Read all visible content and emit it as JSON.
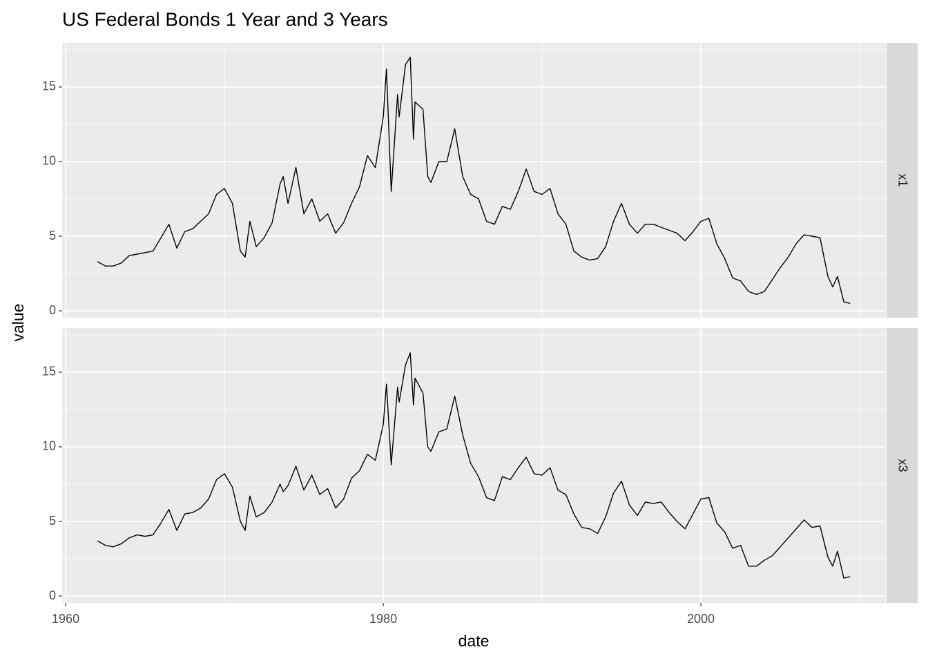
{
  "title": "US Federal Bonds 1 Year and 3 Years",
  "x_label": "date",
  "y_label": "value",
  "chart_data": [
    {
      "type": "line",
      "strip": "x1",
      "color": "#000000",
      "x": [
        1962,
        1962.5,
        1963,
        1963.5,
        1964,
        1964.5,
        1965,
        1965.5,
        1966,
        1966.5,
        1967,
        1967.5,
        1968,
        1968.5,
        1969,
        1969.5,
        1970,
        1970.5,
        1971,
        1971.3,
        1971.6,
        1972,
        1972.5,
        1973,
        1973.5,
        1973.7,
        1974,
        1974.5,
        1975,
        1975.5,
        1976,
        1976.5,
        1977,
        1977.5,
        1978,
        1978.5,
        1979,
        1979.5,
        1980,
        1980.2,
        1980.5,
        1980.9,
        1981,
        1981.4,
        1981.7,
        1981.9,
        1982,
        1982.5,
        1982.8,
        1983,
        1983.5,
        1984,
        1984.5,
        1985,
        1985.5,
        1986,
        1986.5,
        1987,
        1987.5,
        1988,
        1988.5,
        1989,
        1989.5,
        1990,
        1990.5,
        1991,
        1991.5,
        1992,
        1992.5,
        1993,
        1993.5,
        1994,
        1994.5,
        1995,
        1995.5,
        1996,
        1996.5,
        1997,
        1997.5,
        1998,
        1998.5,
        1999,
        1999.5,
        2000,
        2000.5,
        2001,
        2001.5,
        2002,
        2002.5,
        2003,
        2003.5,
        2004,
        2004.5,
        2005,
        2005.5,
        2006,
        2006.5,
        2007,
        2007.5,
        2008,
        2008.3,
        2008.6,
        2009,
        2009.4
      ],
      "values": [
        3.3,
        3.0,
        3.0,
        3.2,
        3.7,
        3.8,
        3.9,
        4.0,
        4.9,
        5.8,
        4.2,
        5.3,
        5.5,
        6.0,
        6.5,
        7.8,
        8.2,
        7.2,
        4.0,
        3.6,
        6.0,
        4.3,
        4.9,
        5.9,
        8.5,
        9.0,
        7.2,
        9.6,
        6.5,
        7.5,
        6.0,
        6.5,
        5.2,
        5.9,
        7.2,
        8.3,
        10.4,
        9.6,
        13.0,
        16.2,
        8.0,
        14.5,
        13.0,
        16.5,
        17.0,
        11.5,
        14.0,
        13.5,
        9.0,
        8.6,
        10.0,
        10.0,
        12.2,
        9.0,
        7.8,
        7.5,
        6.0,
        5.8,
        7.0,
        6.8,
        8.0,
        9.5,
        8.0,
        7.8,
        8.2,
        6.5,
        5.8,
        4.0,
        3.6,
        3.4,
        3.5,
        4.3,
        6.0,
        7.2,
        5.8,
        5.2,
        5.8,
        5.8,
        5.6,
        5.4,
        5.2,
        4.7,
        5.3,
        6.0,
        6.2,
        4.5,
        3.5,
        2.2,
        2.0,
        1.3,
        1.1,
        1.3,
        2.1,
        2.9,
        3.6,
        4.5,
        5.1,
        5.0,
        4.9,
        2.3,
        1.6,
        2.3,
        0.6,
        0.5
      ],
      "xlim": [
        1959.78,
        2011.65
      ],
      "ylim": [
        -0.46,
        17.96
      ],
      "xticks": [
        1960,
        1980,
        2000
      ],
      "yticks": [
        0,
        5,
        10,
        15
      ],
      "minor_xticks": [
        1970,
        1990,
        2010
      ],
      "minor_yticks": [
        2.5,
        7.5,
        12.5,
        17.5
      ]
    },
    {
      "type": "line",
      "strip": "x3",
      "color": "#000000",
      "x": [
        1962,
        1962.5,
        1963,
        1963.5,
        1964,
        1964.5,
        1965,
        1965.5,
        1966,
        1966.5,
        1967,
        1967.5,
        1968,
        1968.5,
        1969,
        1969.5,
        1970,
        1970.5,
        1971,
        1971.3,
        1971.6,
        1972,
        1972.5,
        1973,
        1973.5,
        1973.7,
        1974,
        1974.5,
        1975,
        1975.5,
        1976,
        1976.5,
        1977,
        1977.5,
        1978,
        1978.5,
        1979,
        1979.5,
        1980,
        1980.2,
        1980.5,
        1980.9,
        1981,
        1981.4,
        1981.7,
        1981.9,
        1982,
        1982.5,
        1982.8,
        1983,
        1983.5,
        1984,
        1984.5,
        1985,
        1985.5,
        1986,
        1986.5,
        1987,
        1987.5,
        1988,
        1988.5,
        1989,
        1989.5,
        1990,
        1990.5,
        1991,
        1991.5,
        1992,
        1992.5,
        1993,
        1993.5,
        1994,
        1994.5,
        1995,
        1995.5,
        1996,
        1996.5,
        1997,
        1997.5,
        1998,
        1998.5,
        1999,
        1999.5,
        2000,
        2000.5,
        2001,
        2001.5,
        2002,
        2002.5,
        2003,
        2003.5,
        2004,
        2004.5,
        2005,
        2005.5,
        2006,
        2006.5,
        2007,
        2007.5,
        2008,
        2008.3,
        2008.6,
        2009,
        2009.4
      ],
      "values": [
        3.7,
        3.4,
        3.3,
        3.5,
        3.9,
        4.1,
        4.0,
        4.1,
        4.9,
        5.8,
        4.4,
        5.5,
        5.6,
        5.9,
        6.5,
        7.8,
        8.2,
        7.3,
        5.0,
        4.4,
        6.7,
        5.3,
        5.6,
        6.3,
        7.5,
        7.0,
        7.4,
        8.7,
        7.1,
        8.1,
        6.8,
        7.2,
        5.9,
        6.5,
        7.9,
        8.4,
        9.5,
        9.1,
        11.5,
        14.2,
        8.8,
        14.0,
        13.0,
        15.5,
        16.3,
        12.8,
        14.6,
        13.6,
        10.0,
        9.7,
        11.0,
        11.2,
        13.4,
        10.8,
        8.9,
        8.0,
        6.6,
        6.4,
        8.0,
        7.8,
        8.6,
        9.3,
        8.2,
        8.1,
        8.6,
        7.1,
        6.8,
        5.5,
        4.6,
        4.5,
        4.2,
        5.3,
        6.9,
        7.7,
        6.1,
        5.4,
        6.3,
        6.2,
        6.3,
        5.6,
        5.0,
        4.5,
        5.5,
        6.5,
        6.6,
        4.9,
        4.3,
        3.2,
        3.4,
        2.0,
        2.0,
        2.4,
        2.7,
        3.3,
        3.9,
        4.5,
        5.1,
        4.6,
        4.7,
        2.6,
        2.0,
        3.0,
        1.2,
        1.3
      ],
      "xlim": [
        1959.78,
        2011.65
      ],
      "ylim": [
        -0.46,
        17.96
      ],
      "xticks": [
        1960,
        1980,
        2000
      ],
      "yticks": [
        0,
        5,
        10,
        15
      ],
      "minor_xticks": [
        1970,
        1990,
        2010
      ],
      "minor_yticks": [
        2.5,
        7.5,
        12.5,
        17.5
      ]
    }
  ]
}
